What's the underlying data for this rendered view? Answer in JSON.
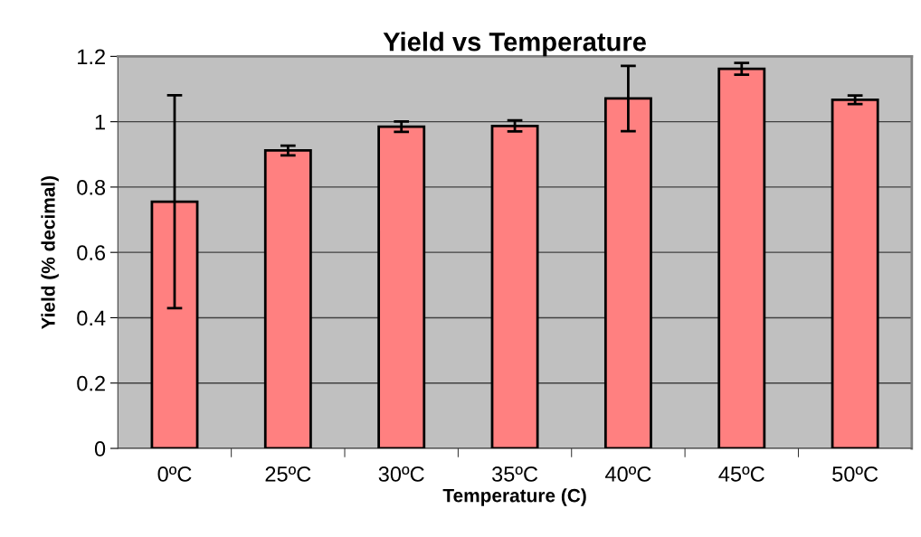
{
  "chart_data": {
    "type": "bar",
    "title": "Yield vs Temperature",
    "xlabel": "Temperature (C)",
    "ylabel": "Yield (% decimal)",
    "categories": [
      "0ºC",
      "25ºC",
      "30ºC",
      "35ºC",
      "40ºC",
      "45ºC",
      "50ºC"
    ],
    "values": [
      0.755,
      0.912,
      0.985,
      0.987,
      1.071,
      1.162,
      1.067
    ],
    "errors": [
      0.326,
      0.015,
      0.016,
      0.017,
      0.1,
      0.018,
      0.013
    ],
    "color": "#ff8080",
    "ylim": [
      0,
      1.2
    ],
    "yticks": [
      0,
      0.2,
      0.4,
      0.6,
      0.8,
      1,
      1.2
    ],
    "grid": "y"
  }
}
